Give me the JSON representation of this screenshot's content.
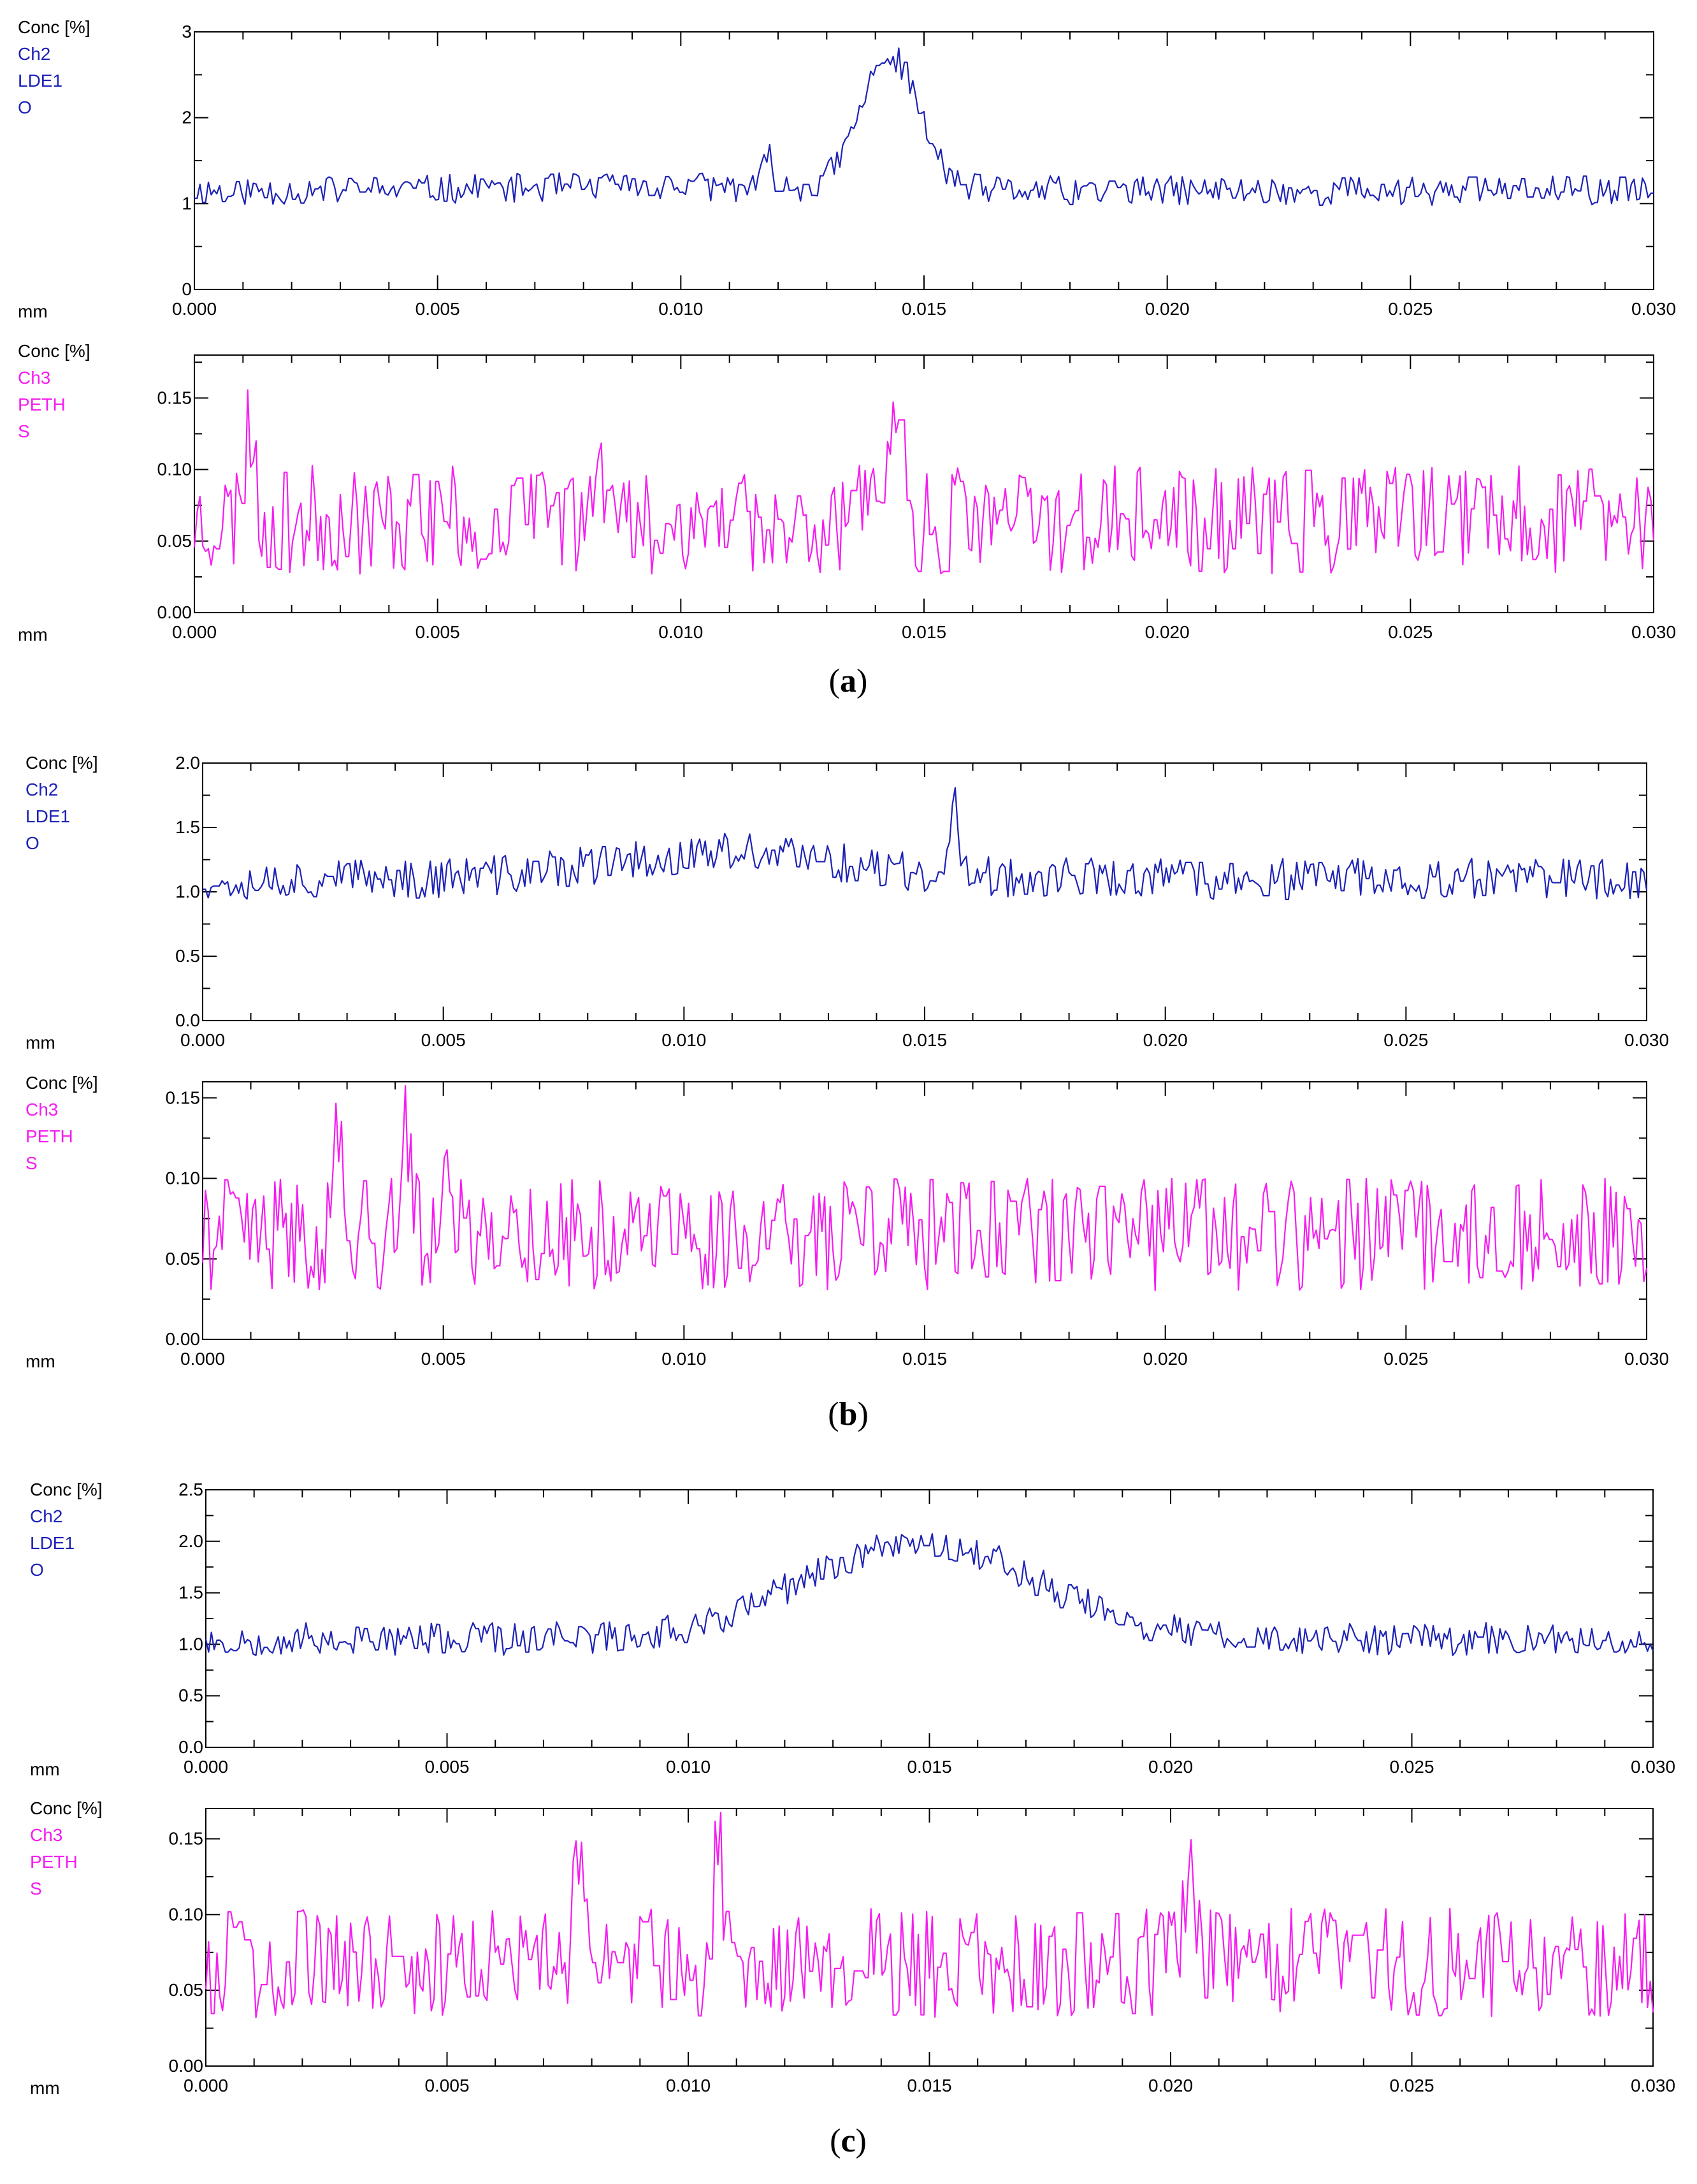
{
  "colors": {
    "blue": "#1d22b6",
    "magenta": "#f51df0",
    "axis": "#000000"
  },
  "panels": [
    {
      "label": "a",
      "charts": [
        {
          "header": "Conc [%]",
          "channel": "Ch2",
          "detector": "LDE1",
          "element": "O",
          "xunit": "mm",
          "color": "#1d22b6",
          "chart_data": {
            "type": "line",
            "ylim": [
              0,
              3
            ],
            "xlim": [
              0,
              0.03
            ],
            "yticks": [
              "0",
              "1",
              "2",
              "3"
            ],
            "xticks": [
              "0.000",
              "0.005",
              "0.010",
              "0.015",
              "0.020",
              "0.025",
              "0.030"
            ],
            "profile": {
              "base": 1.15,
              "noise": 0.17,
              "peaks": [
                [
                  0.0143,
                  1.55,
                  0.0006
                ],
                [
                  0.0118,
                  0.35,
                  0.0001
                ],
                [
                  0.0095,
                  0.05,
                  0.003
                ]
              ]
            },
            "seed": 11
          }
        },
        {
          "header": "Conc [%]",
          "channel": "Ch3",
          "detector": "PETH",
          "element": "S",
          "xunit": "mm",
          "color": "#f51df0",
          "chart_data": {
            "type": "line",
            "ylim": [
              0,
              0.18
            ],
            "xlim": [
              0,
              0.03
            ],
            "yticks": [
              "0.00",
              "0.05",
              "0.10",
              "0.15"
            ],
            "xticks": [
              "0.000",
              "0.005",
              "0.010",
              "0.015",
              "0.020",
              "0.025",
              "0.030"
            ],
            "profile": {
              "base": 0.065,
              "noise": 0.038,
              "peaks": [
                [
                  0.0011,
                  0.08,
                  0.0001
                ],
                [
                  0.0083,
                  0.07,
                  0.0001
                ],
                [
                  0.0144,
                  0.07,
                  0.0001
                ]
              ]
            },
            "seed": 23
          }
        }
      ]
    },
    {
      "label": "b",
      "charts": [
        {
          "header": "Conc [%]",
          "channel": "Ch2",
          "detector": "LDE1",
          "element": "O",
          "xunit": "mm",
          "color": "#1d22b6",
          "chart_data": {
            "type": "line",
            "ylim": [
              0,
              2
            ],
            "xlim": [
              0,
              0.03
            ],
            "yticks": [
              "0.0",
              "0.5",
              "1.0",
              "1.5",
              "2.0"
            ],
            "xticks": [
              "0.000",
              "0.005",
              "0.010",
              "0.015",
              "0.020",
              "0.025",
              "0.030"
            ],
            "profile": {
              "base": 1.1,
              "noise": 0.16,
              "peaks": [
                [
                  0.0156,
                  0.55,
                  0.0001
                ],
                [
                  0.011,
                  0.2,
                  0.0025
                ]
              ]
            },
            "seed": 37
          }
        },
        {
          "header": "Conc [%]",
          "channel": "Ch3",
          "detector": "PETH",
          "element": "S",
          "xunit": "mm",
          "color": "#f51df0",
          "chart_data": {
            "type": "line",
            "ylim": [
              0,
              0.16
            ],
            "xlim": [
              0,
              0.03
            ],
            "yticks": [
              "0.00",
              "0.05",
              "0.10",
              "0.15"
            ],
            "xticks": [
              "0.000",
              "0.005",
              "0.010",
              "0.015",
              "0.020",
              "0.025",
              "0.030"
            ],
            "profile": {
              "base": 0.065,
              "noise": 0.035,
              "peaks": [
                [
                  0.0042,
                  0.07,
                  0.0001
                ],
                [
                  0.0028,
                  0.06,
                  0.0001
                ],
                [
                  0.0051,
                  0.06,
                  0.0001
                ]
              ]
            },
            "seed": 41
          }
        }
      ]
    },
    {
      "label": "c",
      "charts": [
        {
          "header": "Conc [%]",
          "channel": "Ch2",
          "detector": "LDE1",
          "element": "O",
          "xunit": "mm",
          "color": "#1d22b6",
          "chart_data": {
            "type": "line",
            "ylim": [
              0,
              2.5
            ],
            "xlim": [
              0,
              0.03
            ],
            "yticks": [
              "0.0",
              "0.5",
              "1.0",
              "1.5",
              "2.0",
              "2.5"
            ],
            "xticks": [
              "0.000",
              "0.005",
              "0.010",
              "0.015",
              "0.020",
              "0.025",
              "0.030"
            ],
            "profile": {
              "base": 1.05,
              "noise": 0.16,
              "peaks": [
                [
                  0.0148,
                  0.95,
                  0.0024
                ]
              ]
            },
            "seed": 53
          }
        },
        {
          "header": "Conc [%]",
          "channel": "Ch3",
          "detector": "PETH",
          "element": "S",
          "xunit": "mm",
          "color": "#f51df0",
          "chart_data": {
            "type": "line",
            "ylim": [
              0,
              0.17
            ],
            "xlim": [
              0,
              0.03
            ],
            "yticks": [
              "0.00",
              "0.05",
              "0.10",
              "0.15"
            ],
            "xticks": [
              "0.000",
              "0.005",
              "0.010",
              "0.015",
              "0.020",
              "0.025",
              "0.030"
            ],
            "profile": {
              "base": 0.068,
              "noise": 0.036,
              "peaks": [
                [
                  0.0106,
                  0.09,
                  0.0001
                ],
                [
                  0.0077,
                  0.07,
                  0.0001
                ],
                [
                  0.0204,
                  0.06,
                  0.0001
                ]
              ]
            },
            "seed": 67
          }
        }
      ]
    }
  ]
}
